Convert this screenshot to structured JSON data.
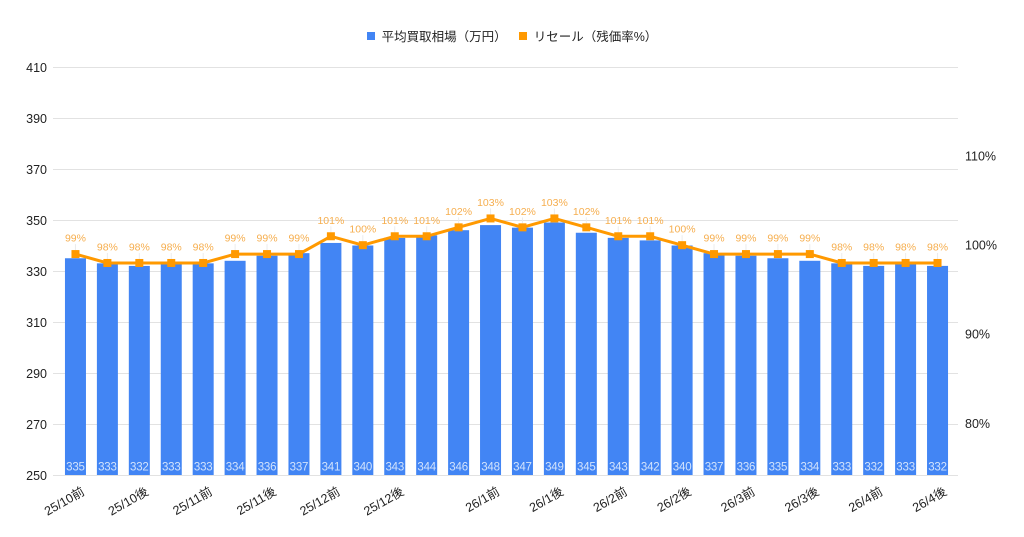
{
  "chart_data": {
    "type": "bar",
    "combo": "bar+line",
    "title": "",
    "xlabel": "",
    "ylabel": "",
    "y2label": "",
    "categories": [
      "25/10前",
      "",
      "25/10後",
      "",
      "25/11前",
      "",
      "25/11後",
      "",
      "25/12前",
      "",
      "25/12後",
      "",
      "",
      "26/1前",
      "",
      "26/1後",
      "",
      "26/2前",
      "",
      "26/2後",
      "",
      "26/3前",
      "",
      "26/3後",
      "",
      "26/4前",
      "",
      "26/4後"
    ],
    "series": [
      {
        "name": "平均買取相場（万円）",
        "type": "bar",
        "axis": "left",
        "color": "#4285f4",
        "label_color": "#d2e3fc",
        "label_suffix": "",
        "values": [
          335,
          333,
          332,
          333,
          333,
          334,
          336,
          337,
          341,
          340,
          343,
          344,
          346,
          348,
          347,
          349,
          345,
          343,
          342,
          340,
          337,
          336,
          335,
          334,
          333,
          332,
          333,
          332
        ]
      },
      {
        "name": "リセール（残価率%）",
        "type": "line",
        "axis": "right",
        "color": "#ff9900",
        "label_color": "#f6ae4e",
        "label_suffix": "%",
        "values": [
          99,
          98,
          98,
          98,
          98,
          99,
          99,
          99,
          101,
          100,
          101,
          101,
          102,
          103,
          102,
          103,
          102,
          101,
          101,
          100,
          99,
          99,
          99,
          99,
          98,
          98,
          98,
          98
        ]
      }
    ],
    "ylim": [
      250,
      410
    ],
    "yticks": [
      250,
      270,
      290,
      310,
      330,
      350,
      370,
      390,
      410
    ],
    "y2lim": [
      74.2,
      120
    ],
    "y2ticks": [
      80,
      90,
      100,
      110
    ],
    "y2tick_labels": [
      "80%",
      "90%",
      "100%",
      "110%"
    ],
    "grid": true,
    "legend": {
      "position": "top"
    },
    "colors": {
      "grid": "#e2e2e2",
      "axis_text": "#222222",
      "background": "#ffffff"
    }
  }
}
